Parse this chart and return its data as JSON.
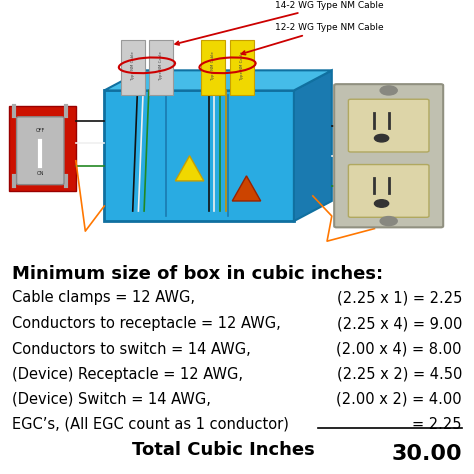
{
  "bg_color": "#ffffff",
  "diagram_label1": "14-2 WG Type NM Cable",
  "diagram_label2": "12-2 WG Type NM Cable",
  "title": "Minimum size of box in cubic inches:",
  "rows": [
    {
      "left": "Cable clamps = 12 AWG,",
      "right": "(2.25 x 1) = 2.25"
    },
    {
      "left": "Conductors to receptacle = 12 AWG,",
      "right": "(2.25 x 4) = 9.00"
    },
    {
      "left": "Conductors to switch = 14 AWG,",
      "right": "(2.00 x 4) = 8.00"
    },
    {
      "left": "(Device) Receptacle = 12 AWG,",
      "right": "(2.25 x 2) = 4.50"
    },
    {
      "left": "(Device) Switch = 14 AWG,",
      "right": "(2.00 x 2) = 4.00"
    },
    {
      "left": "EGC’s, (All EGC count as 1 conductor)",
      "right": "= 2.25"
    }
  ],
  "total_label": "Total Cubic Inches",
  "total_value": "30.00",
  "title_fontsize": 13,
  "row_fontsize": 10.5,
  "total_fontsize": 13,
  "box_color": "#29abe2",
  "arrow_red": "#dd0000"
}
